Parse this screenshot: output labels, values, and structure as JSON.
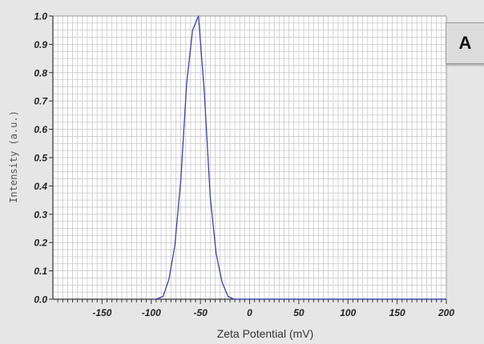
{
  "panel_label": "A",
  "chart_data": {
    "type": "line",
    "xlabel": "Zeta Potential (mV)",
    "ylabel": "Intensity (a.u.)",
    "xlim": [
      -200,
      200
    ],
    "ylim": [
      0,
      1.0
    ],
    "xticks": [
      -150,
      -100,
      -50,
      0,
      50,
      100,
      150,
      200
    ],
    "xtick_labels": [
      "-150",
      "-100",
      "-50",
      "0",
      "50",
      "100",
      "150",
      "200"
    ],
    "yticks": [
      0.0,
      0.1,
      0.2,
      0.3,
      0.4,
      0.5,
      0.6,
      0.7,
      0.8,
      0.9,
      1.0
    ],
    "ytick_labels": [
      "0.0",
      "0.1",
      "0.2",
      "0.3",
      "0.4",
      "0.5",
      "0.6",
      "0.7",
      "0.8",
      "0.9",
      "1.0"
    ],
    "grid": true,
    "line_color": "#3b3fb0",
    "series": [
      {
        "x": [
          -95,
          -88,
          -82,
          -76,
          -70,
          -64,
          -58,
          -52,
          -46,
          -40,
          -34,
          -28,
          -22,
          -16,
          -10,
          200
        ],
        "y": [
          0.0,
          0.01,
          0.07,
          0.19,
          0.42,
          0.76,
          0.95,
          1.0,
          0.73,
          0.36,
          0.16,
          0.06,
          0.01,
          0.0,
          0.0,
          0.0
        ]
      }
    ]
  }
}
